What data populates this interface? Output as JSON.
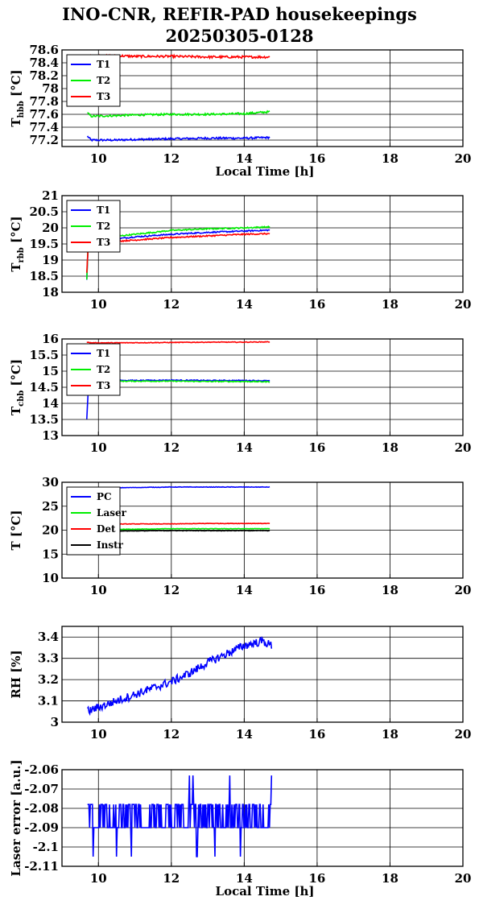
{
  "title": {
    "line1": "INO-CNR, REFIR-PAD housekeepings",
    "line2": "20250305-0128"
  },
  "colors": {
    "blue": "#0000ff",
    "green": "#00ee00",
    "red": "#ff0000",
    "black": "#000000"
  },
  "chart_data": [
    {
      "type": "line",
      "ylabel": "T_hbb [°C]",
      "ylabel_main": "T",
      "ylabel_sub": "hbb",
      "ylabel_unit": " [°C]",
      "xlabel": "Local Time [h]",
      "xlim": [
        9,
        20
      ],
      "xticks": [
        10,
        12,
        14,
        16,
        18,
        20
      ],
      "ylim": [
        77.1,
        78.6
      ],
      "yticks": [
        77.2,
        77.4,
        77.6,
        77.8,
        78,
        78.2,
        78.4,
        78.6
      ],
      "ytick_labels": [
        "77.2",
        "77.4",
        "77.6",
        "77.8",
        "78",
        "78.2",
        "78.4",
        "78.6"
      ],
      "grid": true,
      "legend": "top-left",
      "series": [
        {
          "name": "T1",
          "color": "#0000ff",
          "x": [
            9.7,
            9.8,
            10.5,
            11,
            12,
            13,
            14,
            14.7
          ],
          "y": [
            77.26,
            77.2,
            77.2,
            77.21,
            77.22,
            77.23,
            77.23,
            77.24
          ],
          "noise": 0.015
        },
        {
          "name": "T2",
          "color": "#00ee00",
          "x": [
            9.7,
            9.8,
            10.5,
            11,
            12,
            13,
            14,
            14.7
          ],
          "y": [
            77.62,
            77.57,
            77.58,
            77.59,
            77.6,
            77.6,
            77.61,
            77.64
          ],
          "noise": 0.015
        },
        {
          "name": "T3",
          "color": "#ff0000",
          "x": [
            9.7,
            9.8,
            10.5,
            11,
            12,
            13,
            14,
            14.7
          ],
          "y": [
            78.48,
            78.5,
            78.51,
            78.5,
            78.5,
            78.49,
            78.49,
            78.49
          ],
          "noise": 0.018
        }
      ]
    },
    {
      "type": "line",
      "ylabel": "T_rbb [°C]",
      "ylabel_main": "T",
      "ylabel_sub": "rbb",
      "ylabel_unit": " [°C]",
      "xlabel": "",
      "xlim": [
        9,
        20
      ],
      "xticks": [
        10,
        12,
        14,
        16,
        18,
        20
      ],
      "ylim": [
        18,
        21
      ],
      "yticks": [
        18,
        18.5,
        19,
        19.5,
        20,
        20.5,
        21
      ],
      "ytick_labels": [
        "18",
        "18.5",
        "19",
        "19.5",
        "20",
        "20.5",
        "21"
      ],
      "grid": true,
      "legend": "top-left",
      "series": [
        {
          "name": "T1",
          "color": "#0000ff",
          "x": [
            9.68,
            9.72,
            9.8,
            10,
            11,
            12,
            13,
            14,
            14.7
          ],
          "y": [
            18.4,
            19.5,
            19.55,
            19.6,
            19.72,
            19.8,
            19.86,
            19.9,
            19.93
          ],
          "noise": 0.02
        },
        {
          "name": "T2",
          "color": "#00ee00",
          "x": [
            9.68,
            9.72,
            9.8,
            10,
            11,
            12,
            13,
            14,
            14.7
          ],
          "y": [
            18.4,
            19.55,
            19.62,
            19.68,
            19.8,
            19.92,
            19.97,
            20.0,
            20.03
          ],
          "noise": 0.02
        },
        {
          "name": "T3",
          "color": "#ff0000",
          "x": [
            9.68,
            9.72,
            9.8,
            10,
            11,
            12,
            13,
            14,
            14.7
          ],
          "y": [
            18.6,
            19.45,
            19.5,
            19.55,
            19.62,
            19.7,
            19.75,
            19.8,
            19.82
          ],
          "noise": 0.02
        }
      ]
    },
    {
      "type": "line",
      "ylabel": "T_cbb [°C]",
      "ylabel_main": "T",
      "ylabel_sub": "cbb",
      "ylabel_unit": " [°C]",
      "xlabel": "",
      "xlim": [
        9,
        20
      ],
      "xticks": [
        10,
        12,
        14,
        16,
        18,
        20
      ],
      "ylim": [
        13,
        16
      ],
      "yticks": [
        13,
        13.5,
        14,
        14.5,
        15,
        15.5,
        16
      ],
      "ytick_labels": [
        "13",
        "13.5",
        "14",
        "14.5",
        "15",
        "15.5",
        "16"
      ],
      "grid": true,
      "legend": "top-left",
      "series": [
        {
          "name": "T1",
          "color": "#0000ff",
          "x": [
            9.68,
            9.73,
            9.8,
            10.5,
            12,
            13,
            14,
            14.7
          ],
          "y": [
            13.5,
            14.6,
            14.7,
            14.71,
            14.72,
            14.71,
            14.71,
            14.7
          ],
          "noise": 0.015
        },
        {
          "name": "T2",
          "color": "#00ee00",
          "x": [
            9.68,
            9.73,
            9.8,
            10.5,
            12,
            13,
            14,
            14.7
          ],
          "y": [
            14.4,
            14.65,
            14.68,
            14.69,
            14.69,
            14.68,
            14.68,
            14.67
          ],
          "noise": 0.015
        },
        {
          "name": "T3",
          "color": "#ff0000",
          "x": [
            9.68,
            9.73,
            9.8,
            10.5,
            12,
            13,
            14,
            14.7
          ],
          "y": [
            15.9,
            15.89,
            15.88,
            15.88,
            15.89,
            15.9,
            15.9,
            15.91
          ],
          "noise": 0.01
        }
      ]
    },
    {
      "type": "line",
      "ylabel": "T [°C]",
      "ylabel_main": "T [°C]",
      "ylabel_sub": "",
      "ylabel_unit": "",
      "xlabel": "",
      "xlim": [
        9,
        20
      ],
      "xticks": [
        10,
        12,
        14,
        16,
        18,
        20
      ],
      "ylim": [
        10,
        30
      ],
      "yticks": [
        10,
        15,
        20,
        25,
        30
      ],
      "ytick_labels": [
        "10",
        "15",
        "20",
        "25",
        "30"
      ],
      "grid": true,
      "legend": "top-left",
      "series": [
        {
          "name": "PC",
          "color": "#0000ff",
          "x": [
            9.7,
            11,
            12,
            13,
            14,
            14.7
          ],
          "y": [
            28.8,
            28.9,
            29.0,
            29.0,
            29.0,
            29.0
          ],
          "noise": 0.05
        },
        {
          "name": "Laser",
          "color": "#00ee00",
          "x": [
            9.7,
            11,
            12,
            13,
            14,
            14.7
          ],
          "y": [
            20.1,
            20.2,
            20.3,
            20.3,
            20.3,
            20.3
          ],
          "noise": 0.05
        },
        {
          "name": "Det",
          "color": "#ff0000",
          "x": [
            9.7,
            11,
            12,
            13,
            14,
            14.7
          ],
          "y": [
            21.2,
            21.3,
            21.3,
            21.4,
            21.4,
            21.4
          ],
          "noise": 0.05
        },
        {
          "name": "Instr",
          "color": "#000000",
          "x": [
            9.7,
            11,
            12,
            13,
            14,
            14.7
          ],
          "y": [
            19.8,
            19.85,
            19.9,
            19.9,
            19.9,
            19.9
          ],
          "noise": 0.05
        }
      ]
    },
    {
      "type": "line",
      "ylabel": "RH [%]",
      "ylabel_main": "RH [%]",
      "ylabel_sub": "",
      "ylabel_unit": "",
      "xlabel": "",
      "xlim": [
        9,
        20
      ],
      "xticks": [
        10,
        12,
        14,
        16,
        18,
        20
      ],
      "ylim": [
        3,
        3.45
      ],
      "yticks": [
        3,
        3.1,
        3.2,
        3.3,
        3.4
      ],
      "ytick_labels": [
        "3",
        "3.1",
        "3.2",
        "3.3",
        "3.4"
      ],
      "grid": true,
      "legend": "none",
      "series": [
        {
          "name": "",
          "color": "#0000ff",
          "x": [
            9.7,
            10,
            10.5,
            11,
            11.5,
            12,
            12.5,
            13,
            13.5,
            14,
            14.5,
            14.75
          ],
          "y": [
            3.05,
            3.07,
            3.1,
            3.13,
            3.16,
            3.19,
            3.23,
            3.28,
            3.32,
            3.36,
            3.38,
            3.36
          ],
          "noise": 0.02
        }
      ]
    },
    {
      "type": "line",
      "ylabel": "Laser error [a.u.]",
      "ylabel_main": "Laser error [a.u.]",
      "ylabel_sub": "",
      "ylabel_unit": "",
      "xlabel": "Local Time [h]",
      "xlim": [
        9,
        20
      ],
      "xticks": [
        10,
        12,
        14,
        16,
        18,
        20
      ],
      "ylim": [
        -2.11,
        -2.06
      ],
      "yticks": [
        -2.11,
        -2.1,
        -2.09,
        -2.08,
        -2.07,
        -2.06
      ],
      "ytick_labels": [
        "-2.11",
        "-2.1",
        "-2.09",
        "-2.08",
        "-2.07",
        "-2.06"
      ],
      "grid": true,
      "legend": "none",
      "series": [
        {
          "name": "",
          "color": "#0000ff",
          "x": [
            9.7,
            14.75
          ],
          "levels": [
            -2.078,
            -2.09
          ],
          "spikes_low": [
            9.85,
            10.5,
            10.9,
            12.7,
            13.2,
            13.6,
            13.9
          ],
          "spike_low_value": -2.105,
          "spikes_high": [
            12.5,
            12.6,
            13.6,
            14.75
          ],
          "spike_high_value": -2.063
        }
      ]
    }
  ]
}
